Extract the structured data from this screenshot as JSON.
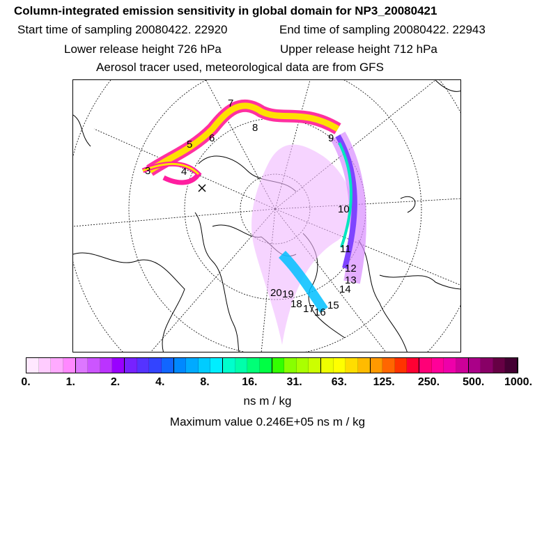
{
  "title": "Column-integrated emission sensitivity in global domain for NP3_20080421",
  "header": {
    "start_label": "Start time of sampling 20080422. 22920",
    "end_label": "End time of sampling 20080422. 22943",
    "lower_label": "Lower release height  726 hPa",
    "upper_label": "Upper release height  712 hPa",
    "tracer_label": "Aerosol tracer used, meteorological data are from GFS"
  },
  "colorbar": {
    "colors": [
      "#ffe8ff",
      "#ffccff",
      "#ffaaff",
      "#ff88ff",
      "#dd77ff",
      "#cc55ff",
      "#bb33ff",
      "#9900ff",
      "#7722ff",
      "#5533ff",
      "#3344ff",
      "#1166ff",
      "#0088ff",
      "#00aaff",
      "#00ccff",
      "#00eeff",
      "#00ffcc",
      "#00ffaa",
      "#00ff77",
      "#00ff44",
      "#33ff00",
      "#88ff00",
      "#aaff00",
      "#ccff00",
      "#eeff00",
      "#ffff00",
      "#ffdd00",
      "#ffbb00",
      "#ff9900",
      "#ff6600",
      "#ff3300",
      "#ff0033",
      "#ff0077",
      "#ff0099",
      "#ee00aa",
      "#cc0099",
      "#aa0088",
      "#880066",
      "#660044",
      "#440033"
    ],
    "tick_labels": [
      "0.",
      "1.",
      "2.",
      "4.",
      "8.",
      "16.",
      "31.",
      "63.",
      "125.",
      "250.",
      "500.",
      "1000."
    ]
  },
  "unit_label": "ns m / kg",
  "max_label": "Maximum value  0.246E+05 ns m / kg",
  "trajectory_labels": [
    "3",
    "4",
    "5",
    "6",
    "7",
    "8",
    "9",
    "10",
    "11",
    "12",
    "13",
    "14",
    "15",
    "16",
    "17",
    "18",
    "19",
    "20"
  ]
}
